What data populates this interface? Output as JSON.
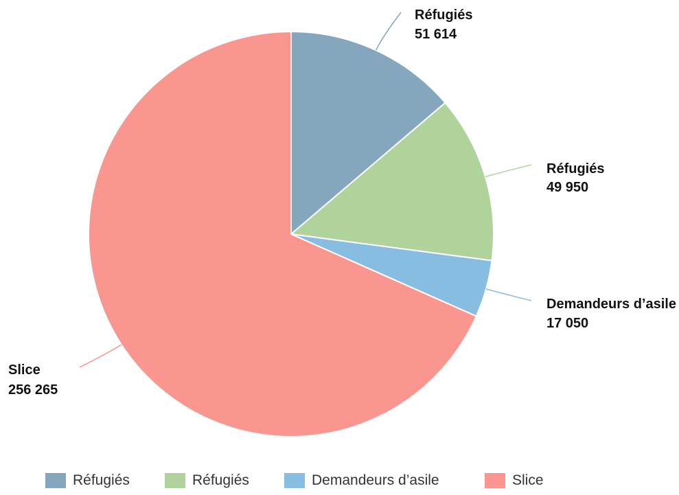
{
  "chart_data": {
    "type": "pie",
    "start_angle_deg": 0,
    "direction": "clockwise",
    "legend_position": "bottom",
    "slices": [
      {
        "name": "Réfugiés",
        "label_value": "51 614",
        "value": 51614,
        "color": "#84a7bd"
      },
      {
        "name": "Réfugiés",
        "label_value": "49 950",
        "value": 49950,
        "color": "#b0d39c"
      },
      {
        "name": "Demandeurs d’asile",
        "label_value": "17 050",
        "value": 17050,
        "color": "#86bde0"
      },
      {
        "name": "Slice",
        "label_value": "256 265",
        "value": 256265,
        "color": "#f8968f"
      }
    ]
  }
}
